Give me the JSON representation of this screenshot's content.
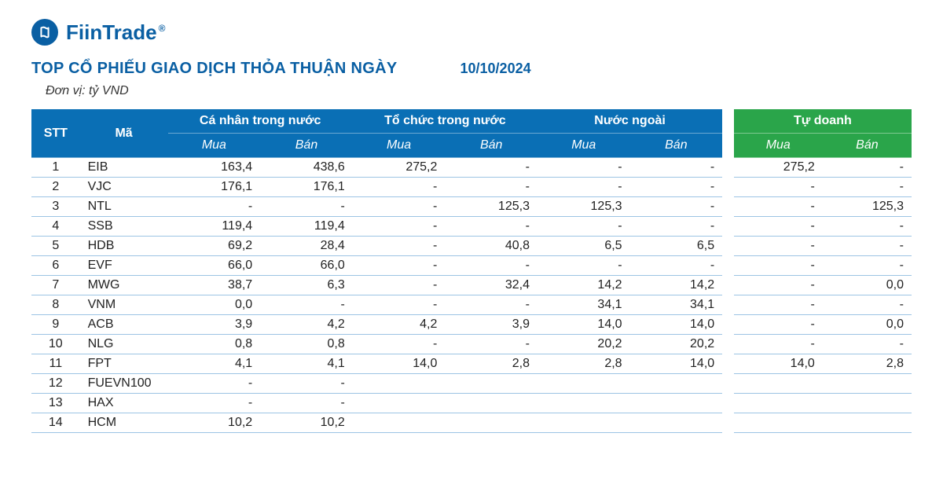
{
  "brand": {
    "name": "FiinTrade",
    "registered": "®"
  },
  "title": "TOP CỔ PHIẾU GIAO DỊCH THỎA THUẬN NGÀY",
  "date": "10/10/2024",
  "unit": "Đơn vị: tỷ VND",
  "colors": {
    "brand_blue": "#0a5fa3",
    "header_blue": "#0a6fb5",
    "header_green": "#2aa54a",
    "row_border": "#9cc4e4",
    "text": "#222222",
    "background": "#ffffff"
  },
  "table": {
    "type": "table",
    "col_widths_pct": [
      5.5,
      10,
      10.5,
      10.5,
      10.5,
      10.5,
      10.5,
      10.5,
      1.3,
      10.1,
      10.1
    ],
    "header": {
      "stt": "STT",
      "ma": "Mã",
      "groups": [
        {
          "label": "Cá nhân trong nước",
          "theme": "blue"
        },
        {
          "label": "Tổ chức trong nước",
          "theme": "blue"
        },
        {
          "label": "Nước ngoài",
          "theme": "blue"
        },
        {
          "label": "Tự doanh",
          "theme": "green"
        }
      ],
      "sub": {
        "mua": "Mua",
        "ban": "Bán"
      }
    },
    "rows": [
      {
        "stt": "1",
        "ma": "EIB",
        "v": [
          "163,4",
          "438,6",
          "275,2",
          "-",
          "-",
          "-",
          "275,2",
          "-"
        ]
      },
      {
        "stt": "2",
        "ma": "VJC",
        "v": [
          "176,1",
          "176,1",
          "-",
          "-",
          "-",
          "-",
          "-",
          "-"
        ]
      },
      {
        "stt": "3",
        "ma": "NTL",
        "v": [
          "-",
          "-",
          "-",
          "125,3",
          "125,3",
          "-",
          "-",
          "125,3"
        ]
      },
      {
        "stt": "4",
        "ma": "SSB",
        "v": [
          "119,4",
          "119,4",
          "-",
          "-",
          "-",
          "-",
          "-",
          "-"
        ]
      },
      {
        "stt": "5",
        "ma": "HDB",
        "v": [
          "69,2",
          "28,4",
          "-",
          "40,8",
          "6,5",
          "6,5",
          "-",
          "-"
        ]
      },
      {
        "stt": "6",
        "ma": "EVF",
        "v": [
          "66,0",
          "66,0",
          "-",
          "-",
          "-",
          "-",
          "-",
          "-"
        ]
      },
      {
        "stt": "7",
        "ma": "MWG",
        "v": [
          "38,7",
          "6,3",
          "-",
          "32,4",
          "14,2",
          "14,2",
          "-",
          "0,0"
        ]
      },
      {
        "stt": "8",
        "ma": "VNM",
        "v": [
          "0,0",
          "-",
          "-",
          "-",
          "34,1",
          "34,1",
          "-",
          "-"
        ]
      },
      {
        "stt": "9",
        "ma": "ACB",
        "v": [
          "3,9",
          "4,2",
          "4,2",
          "3,9",
          "14,0",
          "14,0",
          "-",
          "0,0"
        ]
      },
      {
        "stt": "10",
        "ma": "NLG",
        "v": [
          "0,8",
          "0,8",
          "-",
          "-",
          "20,2",
          "20,2",
          "-",
          "-"
        ]
      },
      {
        "stt": "11",
        "ma": "FPT",
        "v": [
          "4,1",
          "4,1",
          "14,0",
          "2,8",
          "2,8",
          "14,0",
          "14,0",
          "2,8"
        ]
      },
      {
        "stt": "12",
        "ma": "FUEVN100",
        "v": [
          "-",
          "-",
          "",
          "",
          "",
          "",
          "",
          ""
        ]
      },
      {
        "stt": "13",
        "ma": "HAX",
        "v": [
          "-",
          "-",
          "",
          "",
          "",
          "",
          "",
          ""
        ]
      },
      {
        "stt": "14",
        "ma": "HCM",
        "v": [
          "10,2",
          "10,2",
          "",
          "",
          "",
          "",
          "",
          ""
        ]
      }
    ]
  }
}
